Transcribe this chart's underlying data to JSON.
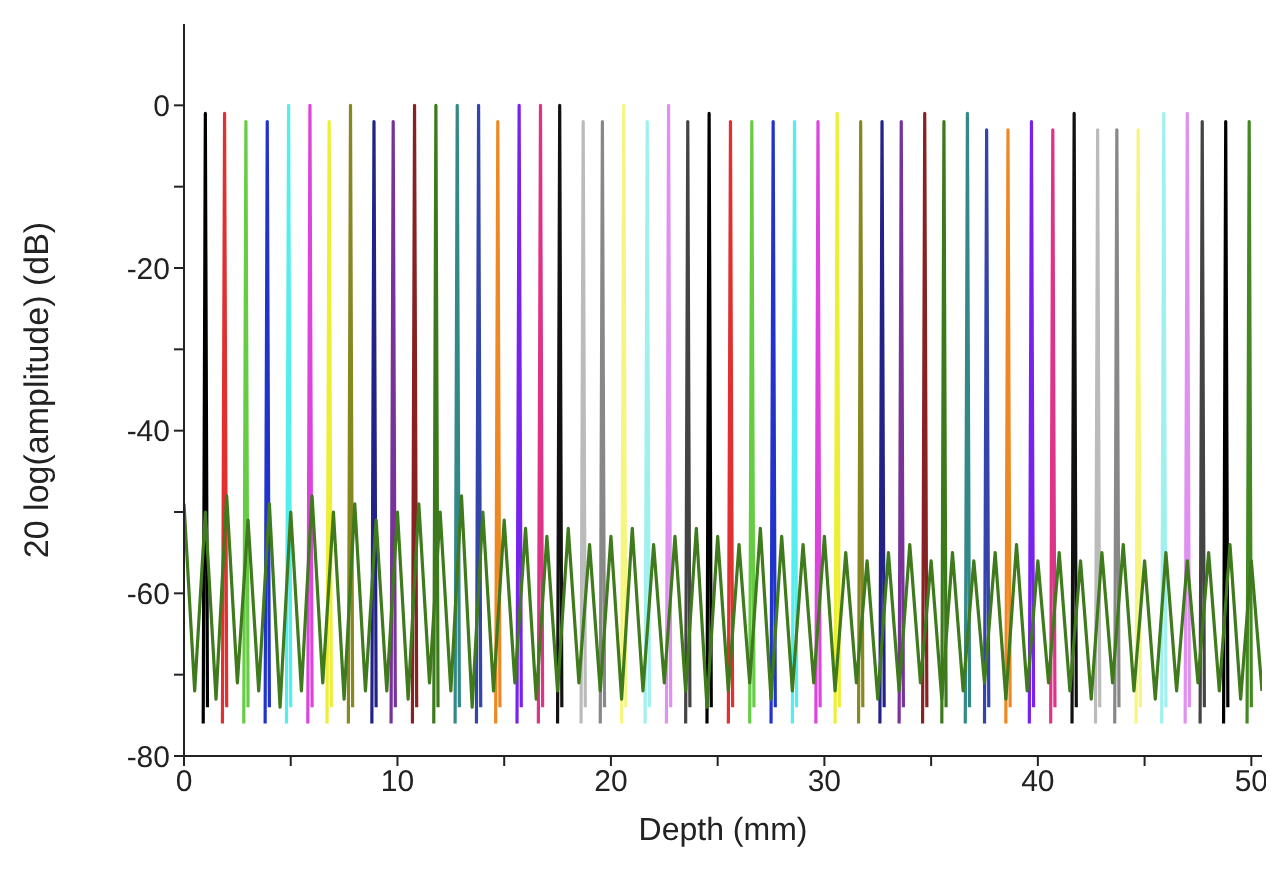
{
  "chart_data": {
    "type": "line",
    "xlabel": "Depth (mm)",
    "ylabel": "20 log(amplitude) (dB)",
    "xlim": [
      0,
      50.5
    ],
    "ylim": [
      -80,
      10
    ],
    "xticks": [
      0,
      {
        "value": 5,
        "label": null
      },
      10,
      {
        "value": 15,
        "label": null
      },
      20,
      {
        "value": 25,
        "label": null
      },
      30,
      {
        "value": 35,
        "label": null
      },
      40,
      {
        "value": 45,
        "label": null
      },
      50
    ],
    "yticks": [
      -80,
      {
        "value": -70,
        "label": null
      },
      -60,
      {
        "value": -50,
        "label": null
      },
      -40,
      {
        "value": -30,
        "label": null
      },
      -20,
      {
        "value": -10,
        "label": null
      },
      0
    ],
    "series": [
      {
        "color": "#000000",
        "x": [
          0.9,
          1.0,
          1.1
        ],
        "values": [
          -76,
          -1,
          -74
        ]
      },
      {
        "color": "#e03030",
        "x": [
          1.8,
          1.9,
          2.0
        ],
        "values": [
          -76,
          -1,
          -74
        ]
      },
      {
        "color": "#66cc44",
        "x": [
          2.8,
          2.9,
          3.0
        ],
        "values": [
          -76,
          -2,
          -74
        ]
      },
      {
        "color": "#2233cc",
        "x": [
          3.8,
          3.9,
          4.0
        ],
        "values": [
          -76,
          -2,
          -74
        ]
      },
      {
        "color": "#55eeee",
        "x": [
          4.8,
          4.9,
          5.0
        ],
        "values": [
          -76,
          0,
          -74
        ]
      },
      {
        "color": "#dd44dd",
        "x": [
          5.8,
          5.9,
          6.0
        ],
        "values": [
          -76,
          0,
          -74
        ]
      },
      {
        "color": "#eeee33",
        "x": [
          6.7,
          6.8,
          6.9
        ],
        "values": [
          -76,
          -2,
          -74
        ]
      },
      {
        "color": "#888822",
        "x": [
          7.7,
          7.8,
          7.9
        ],
        "values": [
          -76,
          0,
          -74
        ]
      },
      {
        "color": "#222288",
        "x": [
          8.8,
          8.9,
          9.0
        ],
        "values": [
          -76,
          -2,
          -74
        ]
      },
      {
        "color": "#773399",
        "x": [
          9.7,
          9.8,
          9.9
        ],
        "values": [
          -76,
          -2,
          -74
        ]
      },
      {
        "color": "#882222",
        "x": [
          10.7,
          10.8,
          10.9
        ],
        "values": [
          -76,
          0,
          -74
        ]
      },
      {
        "color": "#3a7a1a",
        "x": [
          11.7,
          11.8,
          11.9
        ],
        "values": [
          -76,
          0,
          -74
        ]
      },
      {
        "color": "#338888",
        "x": [
          12.7,
          12.8,
          12.9
        ],
        "values": [
          -76,
          0,
          -74
        ]
      },
      {
        "color": "#3344aa",
        "x": [
          13.7,
          13.8,
          13.9
        ],
        "values": [
          -76,
          0,
          -74
        ]
      },
      {
        "color": "#ee8822",
        "x": [
          14.6,
          14.7,
          14.8
        ],
        "values": [
          -76,
          -2,
          -74
        ]
      },
      {
        "color": "#7722ee",
        "x": [
          15.6,
          15.7,
          15.8
        ],
        "values": [
          -76,
          0,
          -74
        ]
      },
      {
        "color": "#dd3388",
        "x": [
          16.6,
          16.7,
          16.8
        ],
        "values": [
          -76,
          0,
          -74
        ]
      },
      {
        "color": "#111111",
        "x": [
          17.5,
          17.6,
          17.7
        ],
        "values": [
          -76,
          0,
          -74
        ]
      },
      {
        "color": "#bbbbbb",
        "x": [
          18.6,
          18.7,
          18.8
        ],
        "values": [
          -76,
          -2,
          -74
        ]
      },
      {
        "color": "#888888",
        "x": [
          19.5,
          19.6,
          19.7
        ],
        "values": [
          -76,
          -2,
          -74
        ]
      },
      {
        "color": "#f5f580",
        "x": [
          20.5,
          20.6,
          20.7
        ],
        "values": [
          -76,
          0,
          -74
        ]
      },
      {
        "color": "#a0f0f0",
        "x": [
          21.6,
          21.7,
          21.8
        ],
        "values": [
          -76,
          -2,
          -74
        ]
      },
      {
        "color": "#e090f0",
        "x": [
          22.6,
          22.7,
          22.8
        ],
        "values": [
          -76,
          0,
          -74
        ]
      },
      {
        "color": "#444444",
        "x": [
          23.5,
          23.6,
          23.7
        ],
        "values": [
          -76,
          -2,
          -74
        ]
      },
      {
        "color": "#000000",
        "x": [
          24.5,
          24.6,
          24.7
        ],
        "values": [
          -76,
          -1,
          -74
        ]
      },
      {
        "color": "#e03030",
        "x": [
          25.5,
          25.6,
          25.7
        ],
        "values": [
          -76,
          -2,
          -74
        ]
      },
      {
        "color": "#66cc44",
        "x": [
          26.5,
          26.6,
          26.7
        ],
        "values": [
          -76,
          -2,
          -74
        ]
      },
      {
        "color": "#2233cc",
        "x": [
          27.5,
          27.6,
          27.7
        ],
        "values": [
          -76,
          -2,
          -74
        ]
      },
      {
        "color": "#55eeee",
        "x": [
          28.5,
          28.6,
          28.7
        ],
        "values": [
          -76,
          -2,
          -74
        ]
      },
      {
        "color": "#dd44dd",
        "x": [
          29.6,
          29.7,
          29.8
        ],
        "values": [
          -76,
          -2,
          -74
        ]
      },
      {
        "color": "#eeee33",
        "x": [
          30.5,
          30.6,
          30.7
        ],
        "values": [
          -76,
          -1,
          -74
        ]
      },
      {
        "color": "#888822",
        "x": [
          31.6,
          31.7,
          31.8
        ],
        "values": [
          -76,
          -2,
          -74
        ]
      },
      {
        "color": "#222288",
        "x": [
          32.6,
          32.7,
          32.8
        ],
        "values": [
          -76,
          -2,
          -74
        ]
      },
      {
        "color": "#773399",
        "x": [
          33.5,
          33.6,
          33.7
        ],
        "values": [
          -76,
          -2,
          -74
        ]
      },
      {
        "color": "#882222",
        "x": [
          34.6,
          34.7,
          34.8
        ],
        "values": [
          -76,
          -1,
          -74
        ]
      },
      {
        "color": "#3a7a1a",
        "x": [
          35.5,
          35.6,
          35.7
        ],
        "values": [
          -76,
          -2,
          -74
        ]
      },
      {
        "color": "#338888",
        "x": [
          36.6,
          36.7,
          36.8
        ],
        "values": [
          -76,
          -1,
          -74
        ]
      },
      {
        "color": "#3344aa",
        "x": [
          37.5,
          37.6,
          37.7
        ],
        "values": [
          -76,
          -3,
          -74
        ]
      },
      {
        "color": "#ee8822",
        "x": [
          38.5,
          38.6,
          38.7
        ],
        "values": [
          -76,
          -3,
          -74
        ]
      },
      {
        "color": "#7722ee",
        "x": [
          39.6,
          39.7,
          39.8
        ],
        "values": [
          -76,
          -2,
          -74
        ]
      },
      {
        "color": "#dd3388",
        "x": [
          40.6,
          40.7,
          40.8
        ],
        "values": [
          -76,
          -3,
          -74
        ]
      },
      {
        "color": "#111111",
        "x": [
          41.6,
          41.7,
          41.8
        ],
        "values": [
          -76,
          -1,
          -74
        ]
      },
      {
        "color": "#bbbbbb",
        "x": [
          42.7,
          42.8,
          42.9
        ],
        "values": [
          -76,
          -3,
          -74
        ]
      },
      {
        "color": "#888888",
        "x": [
          43.6,
          43.7,
          43.8
        ],
        "values": [
          -76,
          -3,
          -74
        ]
      },
      {
        "color": "#f5f580",
        "x": [
          44.6,
          44.7,
          44.8
        ],
        "values": [
          -76,
          -3,
          -74
        ]
      },
      {
        "color": "#a0f0f0",
        "x": [
          45.8,
          45.9,
          46.0
        ],
        "values": [
          -76,
          -1,
          -74
        ]
      },
      {
        "color": "#e090f0",
        "x": [
          46.9,
          47.0,
          47.1
        ],
        "values": [
          -76,
          -1,
          -74
        ]
      },
      {
        "color": "#444444",
        "x": [
          47.6,
          47.7,
          47.8
        ],
        "values": [
          -76,
          -2,
          -74
        ]
      },
      {
        "color": "#000000",
        "x": [
          48.7,
          48.8,
          48.9
        ],
        "values": [
          -76,
          -2,
          -74
        ]
      },
      {
        "color": "#448822",
        "x": [
          49.8,
          49.9,
          50.0
        ],
        "values": [
          -76,
          -2,
          -74
        ]
      },
      {
        "color": "#3f7a1c",
        "x": [
          0,
          0.5,
          1,
          1.5,
          2,
          2.5,
          3,
          3.5,
          4,
          4.5,
          5,
          5.5,
          6,
          6.5,
          7,
          7.5,
          8,
          8.5,
          9,
          9.5,
          10,
          10.5,
          11,
          11.5,
          12,
          12.5,
          13,
          13.5,
          14,
          14.5,
          15,
          15.5,
          16,
          16.5,
          17,
          17.5,
          18,
          18.5,
          19,
          19.5,
          20,
          20.5,
          21,
          21.5,
          22,
          22.5,
          23,
          23.5,
          24,
          24.5,
          25,
          25.5,
          26,
          26.5,
          27,
          27.5,
          28,
          28.5,
          29,
          29.5,
          30,
          30.5,
          31,
          31.5,
          32,
          32.5,
          33,
          33.5,
          34,
          34.5,
          35,
          35.5,
          36,
          36.5,
          37,
          37.5,
          38,
          38.5,
          39,
          39.5,
          40,
          40.5,
          41,
          41.5,
          42,
          42.5,
          43,
          43.5,
          44,
          44.5,
          45,
          45.5,
          46,
          46.5,
          47,
          47.5,
          48,
          48.5,
          49,
          49.5,
          50,
          50.5
        ],
        "values": [
          -49,
          -72,
          -50,
          -73,
          -48,
          -71,
          -51,
          -72,
          -49,
          -74,
          -50,
          -72,
          -48,
          -71,
          -50,
          -73,
          -49,
          -72,
          -51,
          -72,
          -50,
          -73,
          -49,
          -71,
          -50,
          -72,
          -48,
          -74,
          -50,
          -72,
          -51,
          -71,
          -52,
          -73,
          -53,
          -72,
          -52,
          -71,
          -54,
          -72,
          -53,
          -73,
          -52,
          -72,
          -54,
          -71,
          -53,
          -72,
          -52,
          -74,
          -53,
          -72,
          -54,
          -71,
          -52,
          -73,
          -53,
          -72,
          -54,
          -71,
          -53,
          -72,
          -55,
          -71,
          -56,
          -73,
          -55,
          -72,
          -54,
          -71,
          -56,
          -73,
          -55,
          -72,
          -56,
          -71,
          -55,
          -73,
          -54,
          -72,
          -56,
          -71,
          -55,
          -72,
          -56,
          -73,
          -55,
          -71,
          -54,
          -72,
          -56,
          -73,
          -55,
          -72,
          -56,
          -71,
          -55,
          -72,
          -54,
          -73,
          -56,
          -72
        ]
      }
    ]
  }
}
